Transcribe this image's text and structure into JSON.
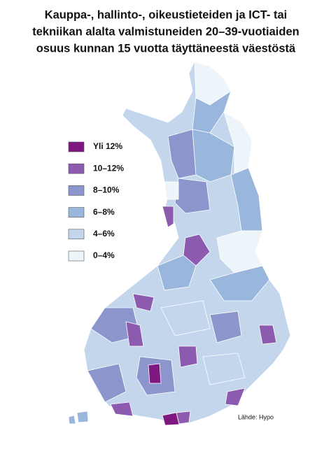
{
  "title": [
    "Kauppa-, hallinto-, oikeustieteiden ja ICT- tai",
    "tekniikan alalta valmistuneiden 20–39-vuotiaiden",
    "osuus kunnan 15 vuotta täyttäneestä väestöstä"
  ],
  "legend": {
    "items": [
      {
        "label": "Yli 12%",
        "color": "#7e1780"
      },
      {
        "label": "10–12%",
        "color": "#8c5bb0"
      },
      {
        "label": "8–10%",
        "color": "#8d96cc"
      },
      {
        "label": "6–8%",
        "color": "#99b6dd"
      },
      {
        "label": "4–6%",
        "color": "#c3d6ec"
      },
      {
        "label": "0–4%",
        "color": "#eef5fa"
      }
    ]
  },
  "source": "Lähde: Hypo"
}
